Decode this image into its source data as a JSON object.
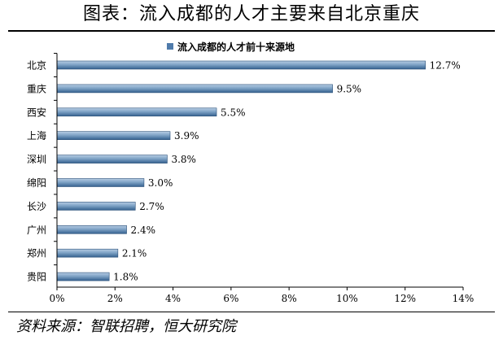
{
  "page": {
    "title": "图表：流入成都的人才主要来自北京重庆",
    "source": "资料来源：智联招聘，恒大研究院"
  },
  "colors": {
    "bar_top": "#b7cde3",
    "bar_mid": "#7fa3c6",
    "bar_bottom": "#35618f",
    "bar_edge": "#2a4f78",
    "legend_swatch": "#4f7bab",
    "axis": "#000000"
  },
  "chart_data": {
    "type": "bar",
    "orientation": "horizontal",
    "legend": "流入成都的人才前十来源地",
    "legend_position": "top",
    "categories": [
      "北京",
      "重庆",
      "西安",
      "上海",
      "深圳",
      "绵阳",
      "长沙",
      "广州",
      "郑州",
      "贵阳"
    ],
    "series": [
      {
        "name": "流入成都的人才前十来源地",
        "values": [
          12.7,
          9.5,
          5.5,
          3.9,
          3.8,
          3.0,
          2.7,
          2.4,
          2.1,
          1.8
        ],
        "labels": [
          "12.7%",
          "9.5%",
          "5.5%",
          "3.9%",
          "3.8%",
          "3.0%",
          "2.7%",
          "2.4%",
          "2.1%",
          "1.8%"
        ]
      }
    ],
    "xlim": [
      0,
      14
    ],
    "xticks": [
      0,
      2,
      4,
      6,
      8,
      10,
      12,
      14
    ],
    "xtick_labels": [
      "0%",
      "2%",
      "4%",
      "6%",
      "8%",
      "10%",
      "12%",
      "14%"
    ],
    "xlabel": "",
    "ylabel": "",
    "grid": false
  }
}
